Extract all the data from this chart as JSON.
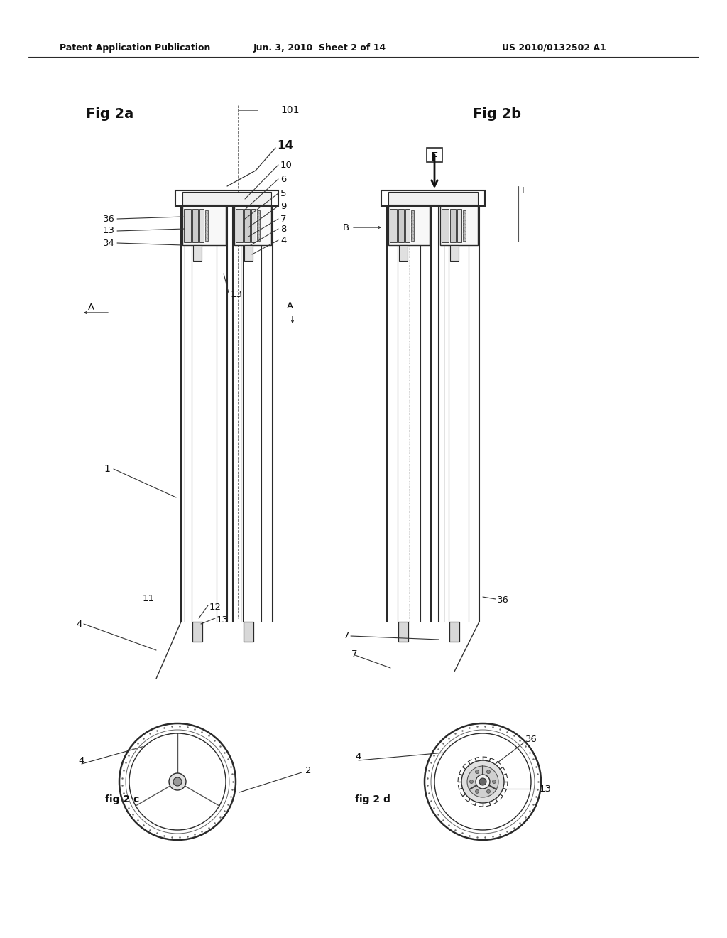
{
  "header_left": "Patent Application Publication",
  "header_center": "Jun. 3, 2010  Sheet 2 of 14",
  "header_right": "US 2010/0132502 A1",
  "bg_color": "#ffffff",
  "fig_width": 10.24,
  "fig_height": 13.2,
  "fig2a_label": "Fig 2a",
  "fig2b_label": "Fig 2b",
  "fig2c_label": "fig 2 c",
  "fig2d_label": "fig 2 d",
  "label_14": "14",
  "label_10": "10",
  "label_6": "6",
  "label_5": "5",
  "label_9": "9",
  "label_7": "7",
  "label_8": "8",
  "label_4": "4",
  "label_36": "36",
  "label_13": "13",
  "label_34": "34",
  "label_1": "1",
  "label_11": "11",
  "label_12": "12",
  "label_2": "2",
  "label_101": "101",
  "label_F": "F",
  "label_B": "B",
  "label_A": "A",
  "label_I": "I"
}
